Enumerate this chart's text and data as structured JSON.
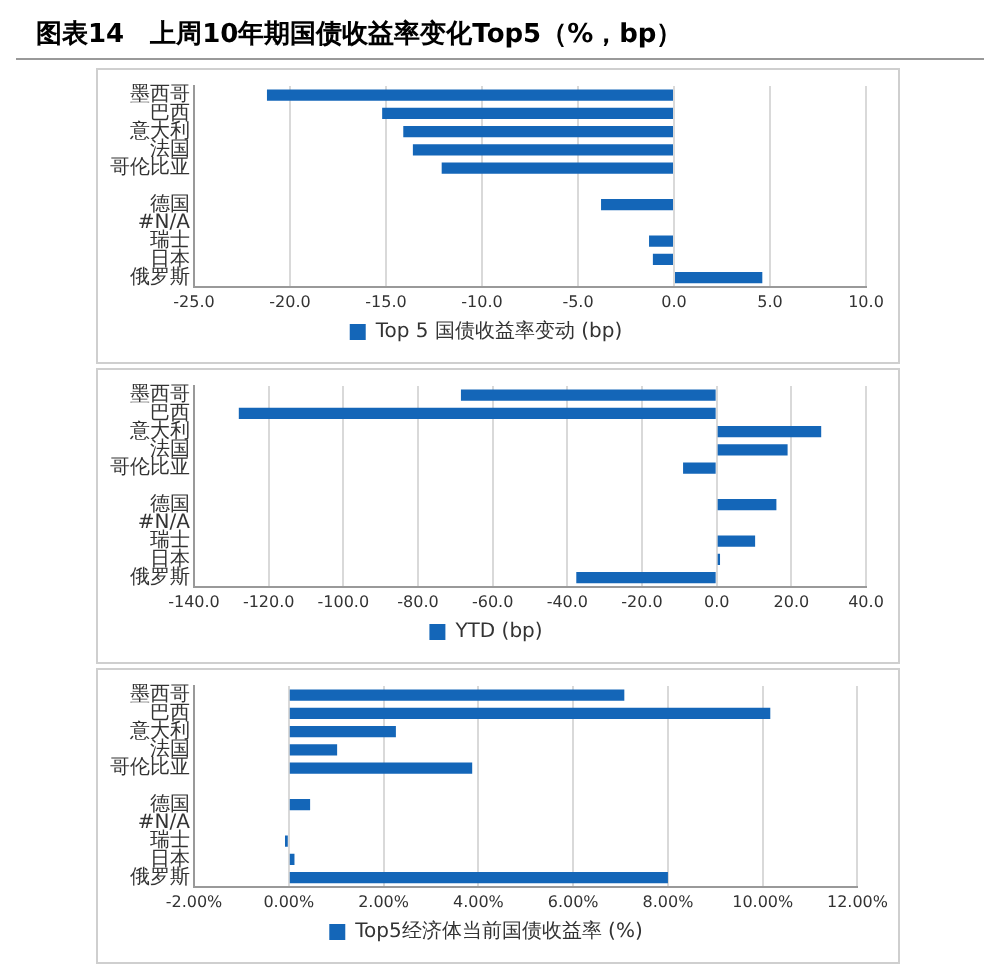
{
  "chart_data": [
    {
      "type": "bar",
      "title": "图表14　上周10年期国债收益率变化Top5（%，bp）",
      "orientation": "horizontal",
      "categories": [
        "墨西哥",
        "巴西",
        "意大利",
        "法国",
        "哥伦比亚",
        null,
        "德国",
        "#N/A",
        "瑞士",
        "日本",
        "俄罗斯"
      ],
      "series": [
        {
          "name": "Top 5 国债收益率变动 (bp)",
          "color": "#1466b8",
          "values": [
            -21.2,
            -15.2,
            -14.1,
            -13.6,
            -12.1,
            null,
            -3.8,
            null,
            -1.3,
            -1.1,
            4.6
          ]
        }
      ],
      "xlim": [
        -25,
        10
      ],
      "xticks": [
        {
          "value": -25,
          "label": "-25.0"
        },
        {
          "value": -20,
          "label": "-20.0"
        },
        {
          "value": -15,
          "label": "-15.0"
        },
        {
          "value": -10,
          "label": "-10.0"
        },
        {
          "value": -5,
          "label": "-5.0"
        },
        {
          "value": 0,
          "label": "0.0"
        },
        {
          "value": 5,
          "label": "5.0"
        },
        {
          "value": 10,
          "label": "10.0"
        }
      ],
      "grid": "x",
      "legend": "bottom"
    },
    {
      "type": "bar",
      "orientation": "horizontal",
      "categories": [
        "墨西哥",
        "巴西",
        "意大利",
        "法国",
        "哥伦比亚",
        null,
        "德国",
        "#N/A",
        "瑞士",
        "日本",
        "俄罗斯"
      ],
      "series": [
        {
          "name": "YTD (bp)",
          "color": "#1466b8",
          "values": [
            -68.5,
            -128,
            28,
            19,
            -9,
            null,
            16,
            null,
            10.3,
            0.9,
            -37.6
          ]
        }
      ],
      "xlim": [
        -140,
        40
      ],
      "xticks": [
        {
          "value": -140,
          "label": "-140.0"
        },
        {
          "value": -120,
          "label": "-120.0"
        },
        {
          "value": -100,
          "label": "-100.0"
        },
        {
          "value": -80,
          "label": "-80.0"
        },
        {
          "value": -60,
          "label": "-60.0"
        },
        {
          "value": -40,
          "label": "-40.0"
        },
        {
          "value": -20,
          "label": "-20.0"
        },
        {
          "value": 0,
          "label": "0.0"
        },
        {
          "value": 20,
          "label": "20.0"
        },
        {
          "value": 40,
          "label": "40.0"
        }
      ],
      "grid": "x",
      "legend": "bottom"
    },
    {
      "type": "bar",
      "orientation": "horizontal",
      "categories": [
        "墨西哥",
        "巴西",
        "意大利",
        "法国",
        "哥伦比亚",
        null,
        "德国",
        "#N/A",
        "瑞士",
        "日本",
        "俄罗斯"
      ],
      "series": [
        {
          "name": "Top5经济体当前国债收益率 (%)",
          "color": "#1466b8",
          "values": [
            7.08,
            10.16,
            2.26,
            1.02,
            3.87,
            null,
            0.45,
            null,
            -0.08,
            0.12,
            8.0
          ]
        }
      ],
      "xlim": [
        -2,
        12
      ],
      "xticks": [
        {
          "value": -2,
          "label": "-2.00%"
        },
        {
          "value": 0,
          "label": "0.00%"
        },
        {
          "value": 2,
          "label": "2.00%"
        },
        {
          "value": 4,
          "label": "4.00%"
        },
        {
          "value": 6,
          "label": "6.00%"
        },
        {
          "value": 8,
          "label": "8.00%"
        },
        {
          "value": 10,
          "label": "10.00%"
        },
        {
          "value": 12,
          "label": "12.00%"
        }
      ],
      "grid": "x",
      "legend": "bottom"
    }
  ]
}
